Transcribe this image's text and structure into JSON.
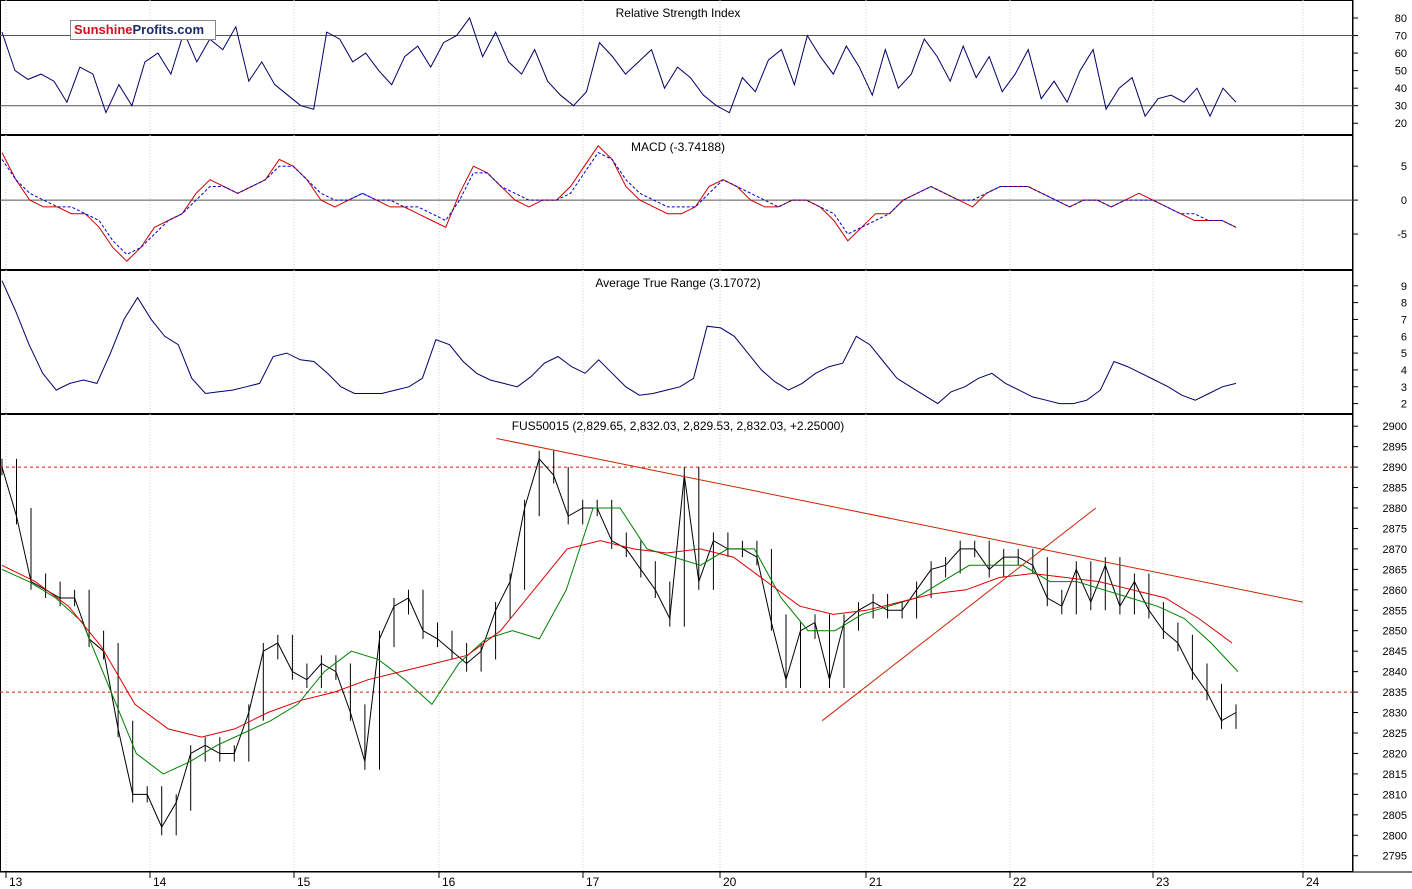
{
  "logo": {
    "part1": "Sunshine",
    "part2": "Profits.com"
  },
  "colors": {
    "rsi": "#000066",
    "macd": "#cc0000",
    "signal": "#0000cc",
    "atr": "#000066",
    "price": "#000000",
    "ma_fast": "#008000",
    "ma_slow": "#dd0000",
    "trend": "#cc2200",
    "ref": "#cc2200"
  },
  "chart_data": [
    {
      "type": "line",
      "title": "Relative Strength Index",
      "y_ticks": [
        20,
        30,
        40,
        50,
        60,
        70,
        80
      ],
      "ylim": [
        15,
        88
      ],
      "reference_lines": [
        30,
        70
      ],
      "series": [
        {
          "values": [
            72,
            50,
            45,
            48,
            44,
            32,
            52,
            48,
            26,
            42,
            30,
            55,
            60,
            48,
            72,
            55,
            68,
            62,
            75,
            44,
            55,
            42,
            36,
            30,
            28,
            72,
            68,
            55,
            60,
            50,
            42,
            58,
            64,
            52,
            66,
            70,
            80,
            58,
            72,
            55,
            48,
            62,
            44,
            36,
            30,
            38,
            66,
            58,
            48,
            55,
            62,
            40,
            52,
            46,
            36,
            30,
            26,
            46,
            38,
            56,
            62,
            42,
            70,
            58,
            48,
            64,
            52,
            36,
            62,
            40,
            48,
            68,
            58,
            44,
            64,
            46,
            58,
            38,
            48,
            62,
            34,
            44,
            32,
            50,
            62,
            28,
            40,
            46,
            24,
            34,
            36,
            32,
            40,
            24,
            40,
            32
          ]
        }
      ]
    },
    {
      "type": "line",
      "title": "MACD (-3.74188)",
      "y_ticks": [
        -5,
        0,
        5
      ],
      "ylim": [
        -10,
        9
      ],
      "reference_lines": [
        0
      ],
      "series": [
        {
          "values": [
            7,
            3,
            0,
            -1,
            -1,
            -2,
            -2,
            -4,
            -7,
            -9,
            -7,
            -4,
            -3,
            -2,
            1,
            3,
            2,
            1,
            2,
            3,
            6,
            5,
            3,
            0,
            -1,
            0,
            1,
            0,
            -1,
            -1,
            -2,
            -3,
            -4,
            1,
            5,
            4,
            2,
            0,
            -1,
            0,
            0,
            2,
            5,
            8,
            6,
            2,
            0,
            -1,
            -2,
            -2,
            -1,
            2,
            3,
            2,
            0,
            -1,
            -1,
            0,
            0,
            -1,
            -3,
            -6,
            -4,
            -2,
            -2,
            0,
            1,
            2,
            1,
            0,
            -1,
            1,
            2,
            2,
            2,
            1,
            0,
            -1,
            0,
            0,
            -1,
            0,
            1,
            0,
            -1,
            -2,
            -3,
            -3,
            -3,
            -4
          ]
        },
        {
          "values": [
            6,
            3,
            1,
            0,
            -1,
            -1,
            -2,
            -3,
            -6,
            -8,
            -7,
            -5,
            -3,
            -2,
            0,
            2,
            2,
            1,
            2,
            3,
            5,
            5,
            3,
            1,
            0,
            0,
            1,
            0,
            0,
            -1,
            -1,
            -2,
            -3,
            0,
            4,
            4,
            2,
            1,
            0,
            0,
            0,
            1,
            4,
            7,
            6,
            3,
            1,
            0,
            -1,
            -1,
            -1,
            1,
            3,
            2,
            1,
            0,
            -1,
            0,
            0,
            -1,
            -2,
            -5,
            -4,
            -3,
            -2,
            0,
            1,
            2,
            1,
            0,
            0,
            1,
            2,
            2,
            2,
            1,
            0,
            -1,
            0,
            0,
            -1,
            0,
            0,
            0,
            -1,
            -2,
            -2,
            -3,
            -3,
            -4
          ]
        }
      ]
    },
    {
      "type": "line",
      "title": "Average True Range (3.17072)",
      "y_ticks": [
        2,
        3,
        4,
        5,
        6,
        7,
        8,
        9
      ],
      "ylim": [
        1.5,
        9.7
      ],
      "series": [
        {
          "values": [
            9.3,
            7.5,
            5.5,
            3.8,
            2.8,
            3.2,
            3.4,
            3.2,
            5,
            7,
            8.3,
            7,
            6,
            5.5,
            3.5,
            2.6,
            2.7,
            2.8,
            3,
            3.2,
            4.8,
            5,
            4.6,
            4.5,
            3.8,
            3,
            2.6,
            2.6,
            2.6,
            2.8,
            3,
            3.5,
            5.8,
            5.5,
            4.5,
            3.8,
            3.4,
            3.2,
            3,
            3.6,
            4.4,
            4.8,
            4.2,
            3.8,
            4.6,
            3.8,
            3,
            2.5,
            2.6,
            2.8,
            3,
            3.5,
            6.6,
            6.5,
            6,
            5,
            4,
            3.3,
            2.8,
            3.2,
            3.8,
            4.2,
            4.4,
            6,
            5.5,
            4.5,
            3.5,
            3,
            2.5,
            2,
            2.7,
            3,
            3.5,
            3.8,
            3.2,
            2.8,
            2.4,
            2.2,
            2,
            2,
            2.2,
            2.8,
            4.5,
            4.2,
            3.8,
            3.4,
            3,
            2.5,
            2.2,
            2.6,
            3,
            3.2
          ]
        }
      ]
    },
    {
      "type": "line",
      "title": "FUS50015 (2,829.65, 2,832.03, 2,829.53, 2,832.03, +2.25000)",
      "y_ticks": [
        2795,
        2800,
        2805,
        2810,
        2815,
        2820,
        2825,
        2830,
        2835,
        2840,
        2845,
        2850,
        2855,
        2860,
        2865,
        2870,
        2875,
        2880,
        2885,
        2890,
        2895,
        2900
      ],
      "ylim": [
        2792,
        2902
      ],
      "x_ticks": [
        "13",
        "14",
        "15",
        "16",
        "17",
        "20",
        "21",
        "22",
        "23",
        "24"
      ],
      "reference_lines": [
        2890,
        2835
      ],
      "series": [
        {
          "values": [
            2890,
            2878,
            2862,
            2860,
            2858,
            2858,
            2848,
            2845,
            2826,
            2810,
            2810,
            2802,
            2808,
            2820,
            2822,
            2820,
            2820,
            2830,
            2845,
            2847,
            2840,
            2838,
            2842,
            2840,
            2830,
            2818,
            2848,
            2856,
            2858,
            2850,
            2848,
            2845,
            2842,
            2845,
            2855,
            2862,
            2880,
            2892,
            2888,
            2878,
            2880,
            2880,
            2872,
            2870,
            2865,
            2860,
            2853,
            2888,
            2862,
            2872,
            2870,
            2870,
            2868,
            2852,
            2838,
            2850,
            2852,
            2838,
            2852,
            2855,
            2857,
            2855,
            2855,
            2860,
            2865,
            2866,
            2870,
            2870,
            2865,
            2868,
            2868,
            2866,
            2858,
            2856,
            2865,
            2857,
            2866,
            2856,
            2862,
            2855,
            2850,
            2847,
            2840,
            2835,
            2828,
            2830
          ]
        },
        {
          "values": [
            2865,
            2862,
            2858,
            2852,
            2836,
            2820,
            2815,
            2818,
            2822,
            2825,
            2828,
            2832,
            2840,
            2845,
            2843,
            2838,
            2832,
            2842,
            2848,
            2850,
            2848,
            2860,
            2880,
            2880,
            2870,
            2868,
            2866,
            2870,
            2870,
            2858,
            2850,
            2850,
            2854,
            2856,
            2858,
            2862,
            2866,
            2866,
            2866,
            2862,
            2862,
            2860,
            2858,
            2856,
            2853,
            2847,
            2840
          ]
        },
        {
          "values": [
            2866,
            2862,
            2856,
            2846,
            2832,
            2826,
            2824,
            2826,
            2830,
            2833,
            2835,
            2838,
            2840,
            2842,
            2844,
            2850,
            2860,
            2870,
            2872,
            2870,
            2869,
            2870,
            2868,
            2862,
            2856,
            2854,
            2855,
            2857,
            2859,
            2860,
            2863,
            2864,
            2863,
            2862,
            2860,
            2858,
            2853,
            2847
          ]
        }
      ],
      "trend_lines": [
        {
          "from": [
            "16.4",
            2897
          ],
          "to": [
            "24.3",
            2857
          ]
        },
        {
          "from": [
            "20.7",
            2828
          ],
          "to": [
            "22.6",
            2880
          ]
        }
      ]
    }
  ]
}
